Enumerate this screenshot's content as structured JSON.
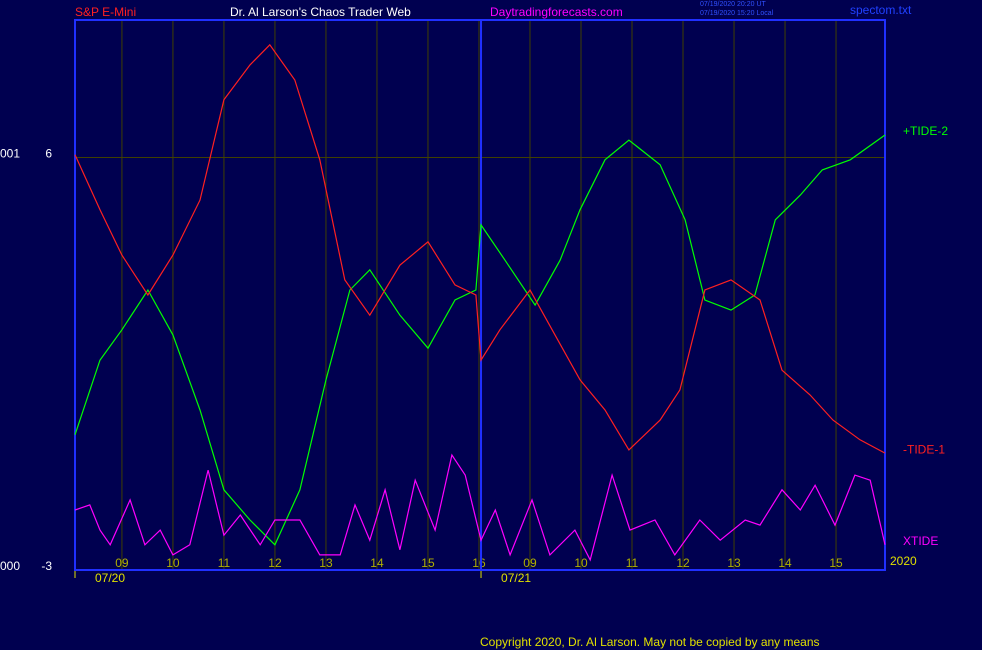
{
  "chart_data": {
    "type": "line",
    "title": "Dr. Al Larson's Chaos Trader Web",
    "instrument": "S&P E-Mini",
    "site": "Daytradingforecasts.com",
    "timestamps": [
      "07/19/2020 20:20 UT",
      "07/19/2020 15:20 Local"
    ],
    "file": "spectom.txt",
    "copyright": "Copyright 2020, Dr. Al Larson. May not be copied by any means",
    "year": "2020",
    "side_labels": [
      "001",
      "000"
    ],
    "ylim": [
      -3,
      9
    ],
    "yticks": [
      6,
      -3
    ],
    "xlim": [
      8.08,
      23.96
    ],
    "xticks": [
      {
        "value": 9,
        "label": "09"
      },
      10,
      11,
      12,
      13,
      14,
      15,
      16,
      {
        "value": 17,
        "label": "09"
      },
      {
        "value": 18,
        "label": "10"
      },
      {
        "value": 19,
        "label": "11"
      },
      {
        "value": 20,
        "label": "12"
      },
      {
        "value": 21,
        "label": "13"
      },
      {
        "value": 22,
        "label": "14"
      },
      {
        "value": 23,
        "label": "15"
      }
    ],
    "day_starts": [
      {
        "value": 8.08,
        "label": "07/20"
      },
      {
        "value": 16.04,
        "label": "07/21"
      }
    ],
    "grid": true,
    "series": [
      {
        "name": "+TIDE-2",
        "color": "#00ff00",
        "x": [
          8.08,
          8.57,
          9.0,
          9.51,
          10.0,
          10.53,
          11.0,
          11.51,
          12.0,
          12.49,
          13.0,
          13.47,
          13.86,
          14.45,
          15.0,
          15.53,
          15.94,
          16.04,
          16.51,
          17.1,
          17.59,
          17.98,
          18.47,
          18.94,
          19.55,
          20.04,
          20.43,
          20.94,
          21.41,
          21.81,
          22.3,
          22.73,
          23.28,
          23.96
        ],
        "values": [
          -0.05,
          1.58,
          2.24,
          3.11,
          2.13,
          0.49,
          -1.25,
          -1.91,
          -2.45,
          -1.25,
          1.15,
          3.11,
          3.55,
          2.56,
          1.84,
          2.89,
          3.11,
          4.53,
          3.76,
          2.78,
          3.76,
          4.86,
          5.95,
          6.38,
          5.84,
          4.64,
          2.89,
          2.67,
          3.0,
          4.64,
          5.18,
          5.73,
          5.95,
          6.49
        ]
      },
      {
        "name": "-TIDE-1",
        "color": "#ff2020",
        "x": [
          8.08,
          8.57,
          9.0,
          9.51,
          10.0,
          10.53,
          11.0,
          11.51,
          11.9,
          12.39,
          12.88,
          13.37,
          13.86,
          14.45,
          15.0,
          15.53,
          15.94,
          16.04,
          16.41,
          17.0,
          17.49,
          17.98,
          18.47,
          18.94,
          19.55,
          19.94,
          20.43,
          20.94,
          21.51,
          21.94,
          22.49,
          22.94,
          23.47,
          23.96
        ],
        "values": [
          6.06,
          4.86,
          3.87,
          3.0,
          3.87,
          5.07,
          7.26,
          8.02,
          8.46,
          7.69,
          5.95,
          3.33,
          2.56,
          3.65,
          4.16,
          3.22,
          3.0,
          1.58,
          2.24,
          3.11,
          2.13,
          1.15,
          0.49,
          -0.38,
          0.27,
          0.93,
          3.11,
          3.33,
          2.89,
          1.36,
          0.82,
          0.27,
          -0.16,
          -0.45
        ]
      },
      {
        "name": "XTIDE",
        "color": "#ff00ff",
        "x": [
          8.08,
          8.37,
          8.57,
          8.77,
          9.16,
          9.45,
          9.75,
          10.0,
          10.33,
          10.69,
          11.0,
          11.32,
          11.71,
          12.0,
          12.49,
          12.88,
          13.28,
          13.57,
          13.86,
          14.16,
          14.45,
          14.75,
          15.14,
          15.47,
          15.73,
          16.04,
          16.32,
          16.61,
          17.04,
          17.39,
          17.88,
          18.18,
          18.61,
          18.96,
          19.45,
          19.84,
          20.33,
          20.73,
          21.22,
          21.51,
          21.94,
          22.3,
          22.59,
          22.98,
          23.37,
          23.67,
          23.96
        ],
        "values": [
          -1.69,
          -1.58,
          -2.13,
          -2.45,
          -1.47,
          -2.45,
          -2.13,
          -2.67,
          -2.45,
          -0.82,
          -2.24,
          -1.8,
          -2.45,
          -1.91,
          -1.91,
          -2.67,
          -2.67,
          -1.58,
          -2.35,
          -1.25,
          -2.56,
          -1.04,
          -2.13,
          -0.49,
          -0.93,
          -2.35,
          -1.69,
          -2.67,
          -1.47,
          -2.67,
          -2.13,
          -2.78,
          -0.93,
          -2.13,
          -1.91,
          -2.67,
          -1.91,
          -2.35,
          -1.91,
          -2.02,
          -1.25,
          -1.69,
          -1.15,
          -2.02,
          -0.93,
          -1.04,
          -2.45
        ]
      }
    ]
  }
}
